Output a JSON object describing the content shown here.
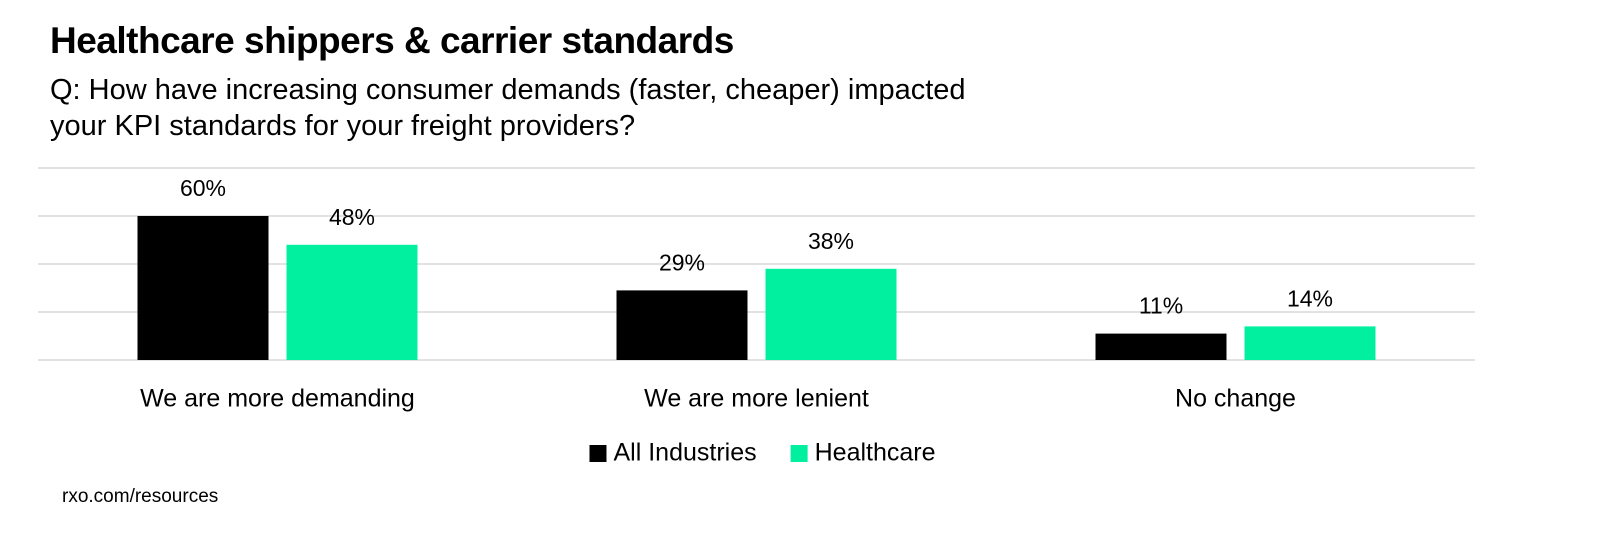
{
  "chart_data": {
    "type": "bar",
    "title": "Healthcare shippers & carrier standards",
    "subtitle": "Q: How have increasing consumer demands (faster, cheaper) impacted your KPI standards for your freight providers?",
    "categories": [
      "We are more demanding",
      "We are more lenient",
      "No change"
    ],
    "series": [
      {
        "name": "All Industries",
        "color": "#000000",
        "values": [
          60,
          29,
          11
        ],
        "value_labels": [
          "60%",
          "29%",
          "11%"
        ]
      },
      {
        "name": "Healthcare",
        "color": "#00f0a0",
        "values": [
          48,
          38,
          14
        ],
        "value_labels": [
          "48%",
          "38%",
          "14%"
        ]
      }
    ],
    "ylim": [
      0,
      80
    ],
    "yticks": [
      0,
      20,
      40,
      60,
      80
    ],
    "grid": true,
    "source": "rxo.com/resources"
  }
}
